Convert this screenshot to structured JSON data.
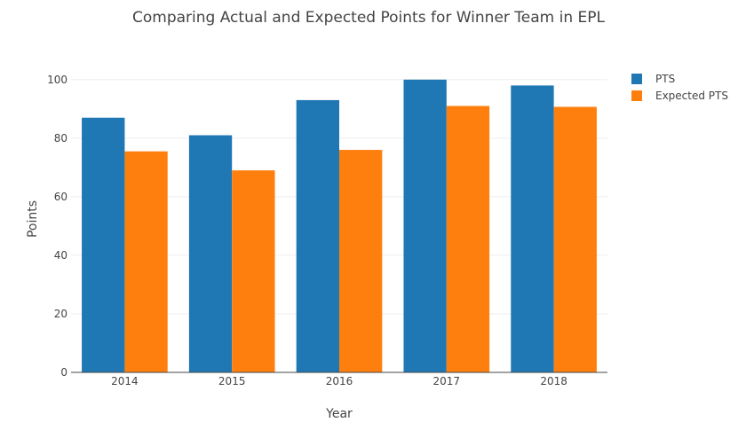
{
  "chart_data": {
    "type": "bar",
    "title": "Comparing Actual and Expected Points for Winner Team in EPL",
    "xlabel": "Year",
    "ylabel": "Points",
    "categories": [
      "2014",
      "2015",
      "2016",
      "2017",
      "2018"
    ],
    "series": [
      {
        "name": "PTS",
        "values": [
          87,
          81,
          93,
          100,
          98
        ],
        "color": "#1f77b4"
      },
      {
        "name": "Expected PTS",
        "values": [
          75.5,
          69,
          76,
          91,
          90.7
        ],
        "color": "#ff7f0e"
      }
    ],
    "ylim": [
      0,
      106
    ],
    "yticks": [
      0,
      20,
      40,
      60,
      80,
      100
    ],
    "grid": true,
    "legend_position": "top-right"
  }
}
